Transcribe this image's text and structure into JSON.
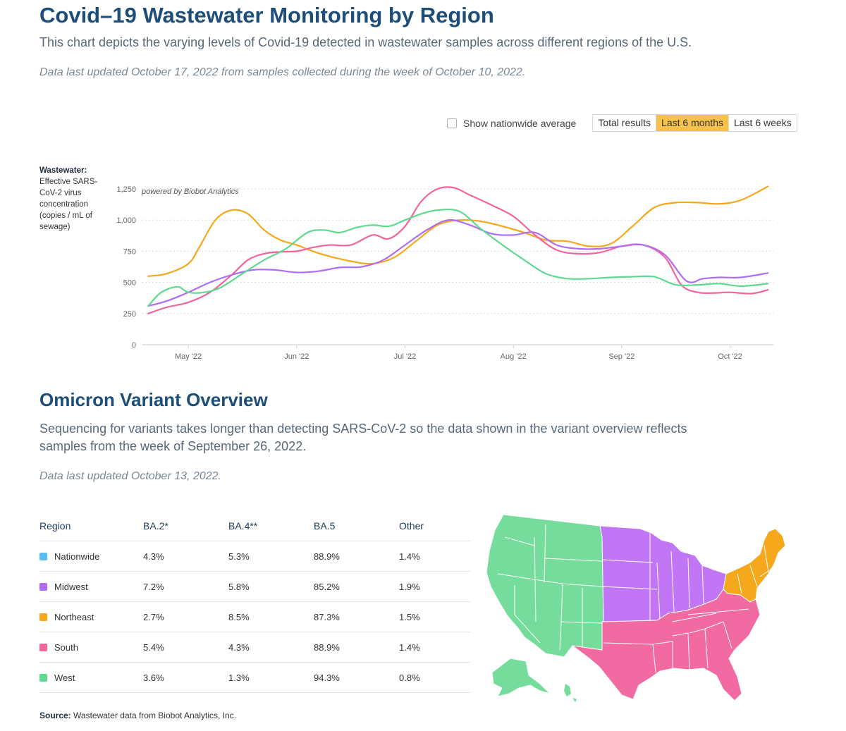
{
  "header": {
    "title": "Covid–19 Wastewater Monitoring by Region",
    "subtitle": "This chart depicts the varying levels of Covid-19 detected in wastewater samples across different regions of the U.S.",
    "updated": "Data last updated October 17, 2022 from samples collected during the week of October 10, 2022."
  },
  "controls": {
    "checkbox_label": "Show nationwide average",
    "checkbox_checked": false,
    "ranges": [
      "Total results",
      "Last 6 months",
      "Last 6 weeks"
    ],
    "active_range": "Last 6 months"
  },
  "axis_desc": {
    "title": "Wastewater:",
    "text": "Effective SARS-CoV-2 virus concentration (copies / mL of sewage)"
  },
  "chart_data": {
    "type": "line",
    "title": "Covid–19 Wastewater Monitoring by Region",
    "ylabel": "Effective SARS-CoV-2 virus concentration (copies / mL of sewage)",
    "annotation": "powered by Biobot Analytics",
    "ylim": [
      0,
      1250
    ],
    "yticks": [
      0,
      250,
      500,
      750,
      1000,
      1250
    ],
    "ytick_labels": [
      "0",
      "250",
      "500",
      "750",
      "1,000",
      "1,250"
    ],
    "xlim": [
      -0.43,
      5.4
    ],
    "xticks": [
      0,
      1,
      2,
      3,
      4,
      5
    ],
    "xtick_labels": [
      "May '22",
      "Jun '22",
      "Jul '22",
      "Aug '22",
      "Sep '22",
      "Oct '22"
    ],
    "grid": true,
    "series": [
      {
        "name": "Northeast",
        "color": "#f5a81c",
        "x": [
          -0.37,
          -0.2,
          0,
          0.1,
          0.25,
          0.4,
          0.55,
          0.7,
          0.85,
          1,
          1.15,
          1.3,
          1.5,
          1.7,
          1.9,
          2.1,
          2.3,
          2.5,
          2.7,
          2.9,
          3.1,
          3.3,
          3.5,
          3.7,
          3.9,
          4.1,
          4.3,
          4.5,
          4.7,
          4.9,
          5.1,
          5.35
        ],
        "values": [
          550,
          570,
          650,
          780,
          1000,
          1080,
          1050,
          920,
          840,
          800,
          750,
          710,
          670,
          650,
          700,
          830,
          960,
          1000,
          990,
          950,
          900,
          840,
          830,
          790,
          810,
          950,
          1100,
          1140,
          1140,
          1130,
          1160,
          1270
        ]
      },
      {
        "name": "South",
        "color": "#f2649b",
        "x": [
          -0.37,
          -0.2,
          0,
          0.2,
          0.4,
          0.55,
          0.7,
          0.85,
          1,
          1.15,
          1.3,
          1.5,
          1.7,
          1.85,
          2,
          2.15,
          2.3,
          2.45,
          2.6,
          2.8,
          3,
          3.2,
          3.4,
          3.6,
          3.8,
          4,
          4.2,
          4.4,
          4.55,
          4.7,
          4.85,
          5,
          5.2,
          5.35
        ],
        "values": [
          250,
          300,
          340,
          420,
          560,
          680,
          730,
          745,
          750,
          780,
          800,
          800,
          880,
          850,
          950,
          1150,
          1250,
          1260,
          1200,
          1120,
          1030,
          880,
          760,
          730,
          740,
          790,
          800,
          700,
          480,
          420,
          415,
          420,
          410,
          440
        ]
      },
      {
        "name": "Midwest",
        "color": "#b06cf2",
        "x": [
          -0.37,
          -0.2,
          0,
          0.2,
          0.4,
          0.6,
          0.8,
          1,
          1.2,
          1.4,
          1.6,
          1.8,
          2,
          2.2,
          2.4,
          2.6,
          2.8,
          3,
          3.2,
          3.4,
          3.6,
          3.8,
          4,
          4.2,
          4.4,
          4.6,
          4.75,
          4.9,
          5.1,
          5.35
        ],
        "values": [
          310,
          350,
          420,
          500,
          560,
          600,
          600,
          580,
          590,
          620,
          625,
          680,
          800,
          920,
          1000,
          960,
          890,
          880,
          900,
          800,
          770,
          770,
          790,
          800,
          720,
          510,
          530,
          540,
          540,
          575
        ]
      },
      {
        "name": "West",
        "color": "#5ed98f",
        "x": [
          -0.37,
          -0.25,
          -0.1,
          0,
          0.15,
          0.3,
          0.5,
          0.7,
          0.9,
          1.1,
          1.25,
          1.4,
          1.55,
          1.7,
          1.85,
          2,
          2.15,
          2.3,
          2.5,
          2.7,
          2.9,
          3.1,
          3.3,
          3.5,
          3.7,
          3.9,
          4.1,
          4.3,
          4.5,
          4.7,
          4.9,
          5.1,
          5.35
        ],
        "values": [
          310,
          420,
          465,
          420,
          420,
          460,
          570,
          680,
          770,
          900,
          920,
          900,
          940,
          960,
          950,
          1000,
          1050,
          1080,
          1070,
          930,
          800,
          680,
          570,
          530,
          530,
          540,
          545,
          545,
          480,
          480,
          490,
          470,
          490
        ]
      }
    ]
  },
  "variants": {
    "title": "Omicron Variant Overview",
    "description": "Sequencing for variants takes longer than detecting SARS-CoV-2 so the data shown in the variant overview reflects samples from the week of September 26, 2022.",
    "updated": "Data last updated October 13, 2022.",
    "columns": [
      "Region",
      "BA.2*",
      "BA.4**",
      "BA.5",
      "Other"
    ],
    "rows": [
      {
        "region": "Nationwide",
        "color": "#5bbcf0",
        "ba2": "4.3%",
        "ba4": "5.3%",
        "ba5": "88.9%",
        "other": "1.4%"
      },
      {
        "region": "Midwest",
        "color": "#b06cf2",
        "ba2": "7.2%",
        "ba4": "5.8%",
        "ba5": "85.2%",
        "other": "1.9%"
      },
      {
        "region": "Northeast",
        "color": "#f5a81c",
        "ba2": "2.7%",
        "ba4": "8.5%",
        "ba5": "87.3%",
        "other": "1.5%"
      },
      {
        "region": "South",
        "color": "#f2649b",
        "ba2": "5.4%",
        "ba4": "4.3%",
        "ba5": "88.9%",
        "other": "1.4%"
      },
      {
        "region": "West",
        "color": "#5ed98f",
        "ba2": "3.6%",
        "ba4": "1.3%",
        "ba5": "94.3%",
        "other": "0.8%"
      }
    ]
  },
  "map": {
    "region_names": [
      "West",
      "Midwest",
      "Northeast",
      "South"
    ],
    "colors": {
      "West": "#75dc9b",
      "Midwest": "#c176f5",
      "Northeast": "#f5a81c",
      "South": "#f26aa2"
    }
  },
  "source": {
    "label": "Source:",
    "text": "Wastewater data from Biobot Analytics, Inc."
  }
}
